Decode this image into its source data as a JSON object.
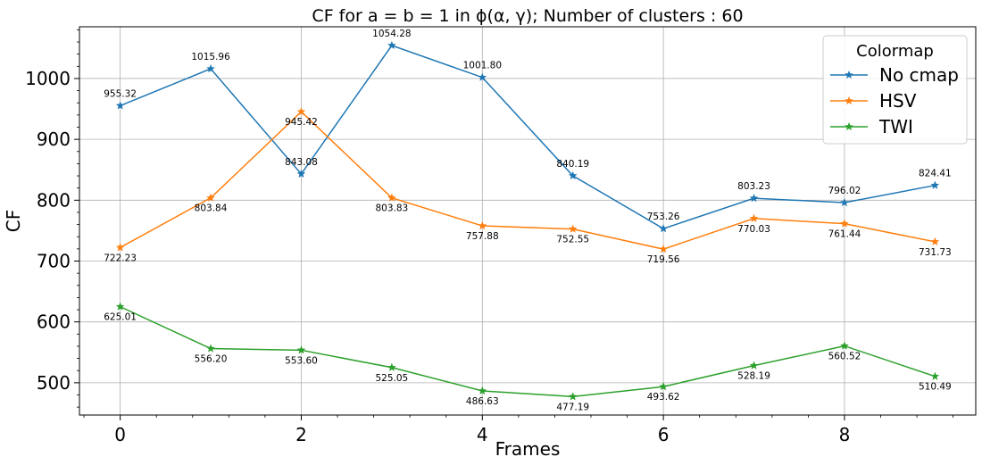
{
  "chart_data": {
    "type": "line",
    "title": "CF for a = b = 1 in ϕ(α, γ); Number of clusters : 60",
    "xlabel": "Frames",
    "ylabel": "CF",
    "x": [
      0,
      1,
      2,
      3,
      4,
      5,
      6,
      7,
      8,
      9
    ],
    "xticks": [
      0,
      2,
      4,
      6,
      8
    ],
    "yticks": [
      500,
      600,
      700,
      800,
      900,
      1000
    ],
    "xlim": [
      -0.45,
      9.45
    ],
    "ylim": [
      447,
      1085
    ],
    "grid": true,
    "legend": {
      "title": "Colormap",
      "placement": "top-right"
    },
    "series": [
      {
        "name": "No cmap",
        "color": "#1f77b4",
        "marker": "star",
        "values": [
          955.32,
          1015.96,
          843.08,
          1054.28,
          1001.8,
          840.19,
          753.26,
          803.23,
          796.02,
          824.41
        ],
        "labels": [
          "955.32",
          "1015.96",
          "843.08",
          "1054.28",
          "1001.80",
          "840.19",
          "753.26",
          "803.23",
          "796.02",
          "824.41"
        ],
        "label_position": "above"
      },
      {
        "name": "HSV",
        "color": "#ff7f0e",
        "marker": "star",
        "values": [
          722.23,
          803.84,
          945.42,
          803.83,
          757.88,
          752.55,
          719.56,
          770.03,
          761.44,
          731.73
        ],
        "labels": [
          "722.23",
          "803.84",
          "945.42",
          "803.83",
          "757.88",
          "752.55",
          "719.56",
          "770.03",
          "761.44",
          "731.73"
        ],
        "label_position": "below"
      },
      {
        "name": "TWI",
        "color": "#2ca02c",
        "marker": "star",
        "values": [
          625.01,
          556.2,
          553.6,
          525.05,
          486.63,
          477.19,
          493.62,
          528.19,
          560.52,
          510.49
        ],
        "labels": [
          "625.01",
          "556.20",
          "553.60",
          "525.05",
          "486.63",
          "477.19",
          "493.62",
          "528.19",
          "560.52",
          "510.49"
        ],
        "label_position": "below"
      }
    ]
  }
}
